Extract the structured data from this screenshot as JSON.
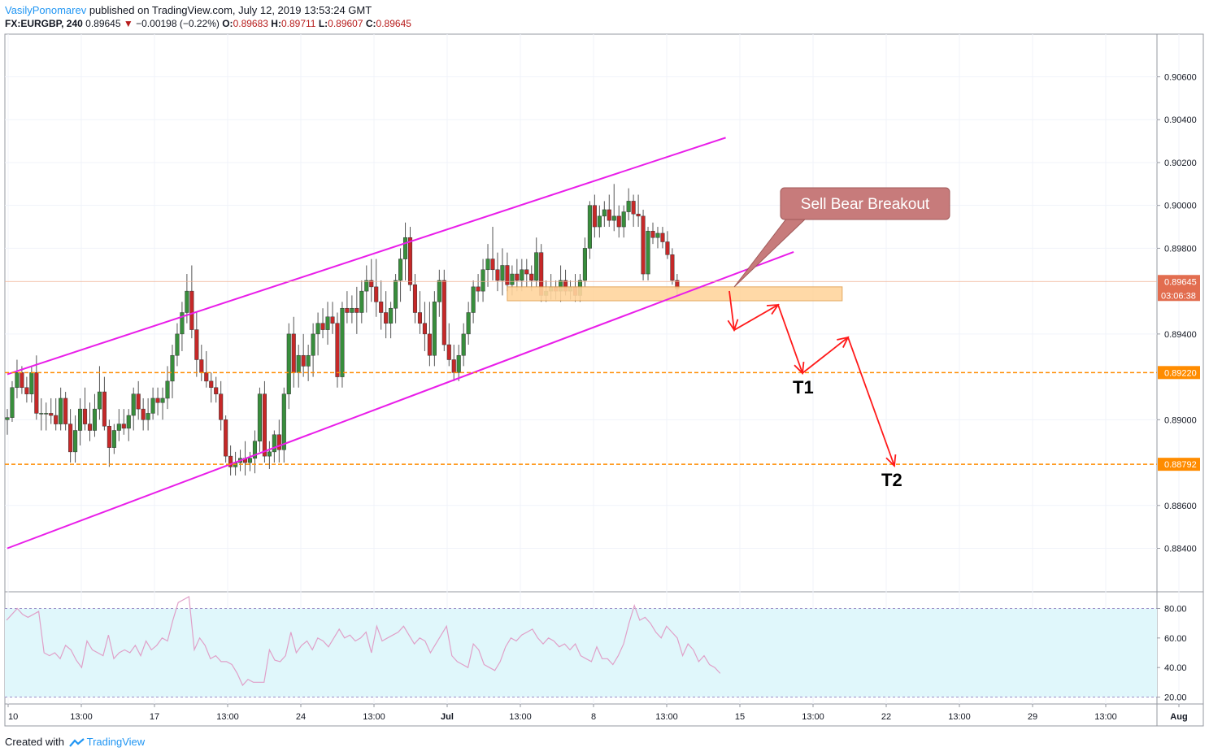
{
  "header": {
    "author": "VasilyPonomarev",
    "published_text": "published on TradingView.com, July 12, 2019 13:53:24 GMT",
    "symbol": "FX:EURGBP, 240",
    "last": "0.89645",
    "change": "−0.00198 (−0.22%)",
    "open_label": "O:",
    "open": "0.89683",
    "high_label": "H:",
    "high": "0.89711",
    "low_label": "L:",
    "low": "0.89607",
    "close_label": "C:",
    "close": "0.89645"
  },
  "footer": {
    "created_with": "Created with",
    "brand": "TradingView"
  },
  "colors": {
    "up": "#388e3c",
    "down": "#c62828",
    "channel": "#e91ee9",
    "target_line": "#ff8c00",
    "zone_fill": "#ffd59e",
    "arrow": "#ff1a1a",
    "callout_fill": "#c77b7b",
    "rsi_line": "#e0a0c8",
    "rsi_band": "#e0f7fb"
  },
  "chart_data": {
    "type": "candlestick",
    "symbol": "FX:EURGBP",
    "timeframe": "240",
    "y_axis": {
      "ylim": [
        0.8822,
        0.9075
      ],
      "ticks": [
        "0.90600",
        "0.90400",
        "0.90200",
        "0.90000",
        "0.89800",
        "0.89400",
        "0.89000",
        "0.88600",
        "0.88400"
      ]
    },
    "x_axis": {
      "tick_labels": [
        "10",
        "13:00",
        "17",
        "13:00",
        "24",
        "13:00",
        "Jul",
        "13:00",
        "8",
        "13:00",
        "15",
        "13:00",
        "22",
        "13:00",
        "29",
        "13:00",
        "Aug"
      ]
    },
    "candles": [
      [
        0.89,
        0.8905,
        0.8893,
        0.8901
      ],
      [
        0.8901,
        0.8918,
        0.8899,
        0.8915
      ],
      [
        0.8915,
        0.8928,
        0.891,
        0.8922
      ],
      [
        0.8922,
        0.8925,
        0.8912,
        0.8915
      ],
      [
        0.8915,
        0.892,
        0.8908,
        0.8912
      ],
      [
        0.8912,
        0.8925,
        0.8908,
        0.8922
      ],
      [
        0.8922,
        0.893,
        0.89,
        0.8903
      ],
      [
        0.8903,
        0.891,
        0.8895,
        0.8903
      ],
      [
        0.8903,
        0.8908,
        0.8895,
        0.8903
      ],
      [
        0.8903,
        0.891,
        0.8898,
        0.8902
      ],
      [
        0.8902,
        0.891,
        0.8895,
        0.8898
      ],
      [
        0.8898,
        0.8915,
        0.8895,
        0.891
      ],
      [
        0.891,
        0.8913,
        0.8895,
        0.8898
      ],
      [
        0.8898,
        0.8905,
        0.888,
        0.8885
      ],
      [
        0.8885,
        0.8902,
        0.888,
        0.8895
      ],
      [
        0.8895,
        0.891,
        0.8888,
        0.8905
      ],
      [
        0.8905,
        0.8915,
        0.8895,
        0.8898
      ],
      [
        0.8898,
        0.8908,
        0.889,
        0.8895
      ],
      [
        0.8895,
        0.8912,
        0.8892,
        0.8905
      ],
      [
        0.8905,
        0.8925,
        0.89,
        0.8913
      ],
      [
        0.8913,
        0.892,
        0.8895,
        0.8897
      ],
      [
        0.8897,
        0.89,
        0.8878,
        0.8887
      ],
      [
        0.8887,
        0.8898,
        0.8884,
        0.8895
      ],
      [
        0.8895,
        0.8905,
        0.889,
        0.8898
      ],
      [
        0.8898,
        0.8905,
        0.8893,
        0.8896
      ],
      [
        0.8896,
        0.8905,
        0.889,
        0.8902
      ],
      [
        0.8902,
        0.8915,
        0.8895,
        0.8912
      ],
      [
        0.8912,
        0.8918,
        0.89,
        0.8905
      ],
      [
        0.8905,
        0.891,
        0.8895,
        0.89
      ],
      [
        0.89,
        0.891,
        0.8895,
        0.8903
      ],
      [
        0.8903,
        0.8915,
        0.89,
        0.891
      ],
      [
        0.891,
        0.8915,
        0.8902,
        0.8908
      ],
      [
        0.8908,
        0.8915,
        0.89,
        0.891
      ],
      [
        0.891,
        0.8925,
        0.8905,
        0.8918
      ],
      [
        0.8918,
        0.8935,
        0.891,
        0.893
      ],
      [
        0.893,
        0.8945,
        0.8925,
        0.894
      ],
      [
        0.894,
        0.8955,
        0.8932,
        0.895
      ],
      [
        0.895,
        0.8968,
        0.8945,
        0.896
      ],
      [
        0.896,
        0.8972,
        0.8938,
        0.8942
      ],
      [
        0.8942,
        0.895,
        0.892,
        0.8928
      ],
      [
        0.8928,
        0.8935,
        0.8918,
        0.8922
      ],
      [
        0.8922,
        0.8932,
        0.8915,
        0.8918
      ],
      [
        0.8918,
        0.8922,
        0.8908,
        0.8915
      ],
      [
        0.8915,
        0.892,
        0.8908,
        0.8912
      ],
      [
        0.8912,
        0.8918,
        0.8895,
        0.89
      ],
      [
        0.89,
        0.8902,
        0.888,
        0.8883
      ],
      [
        0.8883,
        0.8888,
        0.8874,
        0.8878
      ],
      [
        0.8878,
        0.8885,
        0.8874,
        0.888
      ],
      [
        0.888,
        0.8886,
        0.8876,
        0.8882
      ],
      [
        0.8882,
        0.889,
        0.8874,
        0.888
      ],
      [
        0.888,
        0.8885,
        0.8876,
        0.8882
      ],
      [
        0.8882,
        0.8895,
        0.8875,
        0.889
      ],
      [
        0.889,
        0.8915,
        0.8885,
        0.8912
      ],
      [
        0.8912,
        0.8918,
        0.888,
        0.8883
      ],
      [
        0.8883,
        0.889,
        0.8877,
        0.8885
      ],
      [
        0.8885,
        0.8895,
        0.888,
        0.8893
      ],
      [
        0.8893,
        0.89,
        0.888,
        0.8886
      ],
      [
        0.8886,
        0.8915,
        0.888,
        0.8912
      ],
      [
        0.8912,
        0.8945,
        0.8905,
        0.894
      ],
      [
        0.894,
        0.8948,
        0.8915,
        0.8922
      ],
      [
        0.8922,
        0.8935,
        0.8915,
        0.893
      ],
      [
        0.893,
        0.894,
        0.892,
        0.8925
      ],
      [
        0.8925,
        0.8935,
        0.8918,
        0.893
      ],
      [
        0.893,
        0.8945,
        0.892,
        0.894
      ],
      [
        0.894,
        0.895,
        0.893,
        0.8945
      ],
      [
        0.8945,
        0.8952,
        0.8938,
        0.8942
      ],
      [
        0.8942,
        0.8955,
        0.8935,
        0.8948
      ],
      [
        0.8948,
        0.8955,
        0.894,
        0.8945
      ],
      [
        0.8945,
        0.895,
        0.8915,
        0.892
      ],
      [
        0.892,
        0.8955,
        0.8915,
        0.8952
      ],
      [
        0.8952,
        0.896,
        0.8945,
        0.895
      ],
      [
        0.895,
        0.8958,
        0.8945,
        0.8952
      ],
      [
        0.8952,
        0.8962,
        0.894,
        0.895
      ],
      [
        0.895,
        0.8965,
        0.8945,
        0.896
      ],
      [
        0.896,
        0.8972,
        0.895,
        0.8965
      ],
      [
        0.8965,
        0.8975,
        0.8955,
        0.8962
      ],
      [
        0.8962,
        0.8975,
        0.8948,
        0.8955
      ],
      [
        0.8955,
        0.8965,
        0.8942,
        0.895
      ],
      [
        0.895,
        0.896,
        0.8938,
        0.8945
      ],
      [
        0.8945,
        0.8955,
        0.8938,
        0.8952
      ],
      [
        0.8952,
        0.8968,
        0.8945,
        0.8965
      ],
      [
        0.8965,
        0.898,
        0.8955,
        0.8975
      ],
      [
        0.8975,
        0.8992,
        0.8965,
        0.8985
      ],
      [
        0.8985,
        0.899,
        0.896,
        0.8963
      ],
      [
        0.8963,
        0.8968,
        0.8945,
        0.895
      ],
      [
        0.895,
        0.896,
        0.894,
        0.8945
      ],
      [
        0.8945,
        0.8955,
        0.8932,
        0.894
      ],
      [
        0.894,
        0.8955,
        0.8925,
        0.893
      ],
      [
        0.893,
        0.896,
        0.8925,
        0.8955
      ],
      [
        0.8955,
        0.897,
        0.8948,
        0.8965
      ],
      [
        0.8965,
        0.897,
        0.8932,
        0.8935
      ],
      [
        0.8935,
        0.8945,
        0.8925,
        0.8928
      ],
      [
        0.8928,
        0.8935,
        0.8918,
        0.8922
      ],
      [
        0.8922,
        0.8935,
        0.8918,
        0.893
      ],
      [
        0.893,
        0.8945,
        0.8925,
        0.894
      ],
      [
        0.894,
        0.8955,
        0.8935,
        0.895
      ],
      [
        0.895,
        0.8965,
        0.8945,
        0.8962
      ],
      [
        0.8962,
        0.8968,
        0.8955,
        0.896
      ],
      [
        0.896,
        0.8975,
        0.8955,
        0.897
      ],
      [
        0.897,
        0.8982,
        0.8962,
        0.8975
      ],
      [
        0.8975,
        0.899,
        0.8965,
        0.897
      ],
      [
        0.897,
        0.8978,
        0.896,
        0.8965
      ],
      [
        0.8965,
        0.898,
        0.8958,
        0.8972
      ],
      [
        0.8972,
        0.8978,
        0.896,
        0.8963
      ],
      [
        0.8963,
        0.8972,
        0.8958,
        0.8968
      ],
      [
        0.8968,
        0.8975,
        0.896,
        0.8965
      ],
      [
        0.8965,
        0.8975,
        0.896,
        0.897
      ],
      [
        0.897,
        0.8975,
        0.8962,
        0.8968
      ],
      [
        0.8968,
        0.8972,
        0.896,
        0.8965
      ],
      [
        0.8965,
        0.8985,
        0.8962,
        0.8978
      ],
      [
        0.8978,
        0.8982,
        0.8955,
        0.8958
      ],
      [
        0.8958,
        0.8965,
        0.8955,
        0.896
      ],
      [
        0.896,
        0.8968,
        0.8956,
        0.8962
      ],
      [
        0.8962,
        0.8965,
        0.8956,
        0.896
      ],
      [
        0.896,
        0.8972,
        0.8955,
        0.8965
      ],
      [
        0.8965,
        0.897,
        0.8958,
        0.896
      ],
      [
        0.896,
        0.8965,
        0.8956,
        0.8962
      ],
      [
        0.8962,
        0.8968,
        0.8955,
        0.8958
      ],
      [
        0.8958,
        0.8968,
        0.8955,
        0.8965
      ],
      [
        0.8965,
        0.8985,
        0.8962,
        0.898
      ],
      [
        0.898,
        0.9002,
        0.8975,
        0.9
      ],
      [
        0.9,
        0.9005,
        0.8985,
        0.899
      ],
      [
        0.899,
        0.9,
        0.8985,
        0.8995
      ],
      [
        0.8995,
        0.9002,
        0.899,
        0.8998
      ],
      [
        0.8998,
        0.9005,
        0.899,
        0.8993
      ],
      [
        0.8993,
        0.901,
        0.8988,
        0.8995
      ],
      [
        0.8995,
        0.9,
        0.8985,
        0.899
      ],
      [
        0.899,
        0.9,
        0.8985,
        0.8997
      ],
      [
        0.8997,
        0.9008,
        0.8993,
        0.9002
      ],
      [
        0.9002,
        0.9005,
        0.899,
        0.8996
      ],
      [
        0.8996,
        0.9005,
        0.899,
        0.8995
      ],
      [
        0.8995,
        0.8998,
        0.8965,
        0.8968
      ],
      [
        0.8968,
        0.899,
        0.8965,
        0.8988
      ],
      [
        0.8988,
        0.8992,
        0.8982,
        0.8985
      ],
      [
        0.8985,
        0.899,
        0.898,
        0.8987
      ],
      [
        0.8987,
        0.899,
        0.898,
        0.8983
      ],
      [
        0.8983,
        0.8988,
        0.8975,
        0.8977
      ],
      [
        0.8977,
        0.898,
        0.8963,
        0.8965
      ],
      [
        0.8965,
        0.8968,
        0.8958,
        0.8961
      ]
    ],
    "rsi": {
      "levels": [
        80,
        20
      ],
      "ticks": [
        "80.00",
        "60.00",
        "40.00",
        "20.00"
      ],
      "ylim": [
        16,
        90
      ],
      "values": [
        72,
        76,
        80,
        76,
        74,
        76,
        78,
        50,
        48,
        50,
        46,
        55,
        52,
        45,
        40,
        58,
        52,
        50,
        48,
        62,
        46,
        50,
        52,
        50,
        55,
        48,
        58,
        52,
        55,
        60,
        58,
        72,
        84,
        86,
        88,
        52,
        60,
        55,
        46,
        48,
        44,
        44,
        42,
        36,
        28,
        32,
        30,
        30,
        30,
        52,
        45,
        44,
        48,
        64,
        50,
        55,
        58,
        52,
        60,
        58,
        54,
        60,
        66,
        60,
        62,
        58,
        60,
        64,
        50,
        68,
        58,
        60,
        62,
        64,
        68,
        62,
        56,
        60,
        58,
        50,
        56,
        62,
        68,
        48,
        44,
        42,
        40,
        56,
        52,
        42,
        40,
        38,
        44,
        54,
        60,
        58,
        62,
        64,
        66,
        60,
        56,
        60,
        58,
        54,
        56,
        52,
        56,
        48,
        46,
        44,
        54,
        46,
        46,
        42,
        48,
        56,
        70,
        82,
        72,
        74,
        70,
        64,
        60,
        68,
        64,
        60,
        48,
        56,
        52,
        44,
        48,
        42,
        40,
        36
      ]
    },
    "channel_upper": {
      "label": "",
      "start": [
        0,
        0.89212
      ],
      "end": [
        148,
        0.90316
      ]
    },
    "channel_lower": {
      "label": "",
      "start": [
        0,
        0.884
      ],
      "end": [
        162,
        0.89783
      ]
    },
    "zone": {
      "from_bar": 103,
      "to_bar": 172,
      "price_low": 0.89555,
      "price_high": 0.8962
    },
    "targets": [
      {
        "name": "T1",
        "price": 0.8922
      },
      {
        "name": "T2",
        "price": 0.88792
      }
    ],
    "current_price_label": "0.89645",
    "countdown_label": "03:06:38",
    "annotation": "Sell Bear Breakout"
  }
}
